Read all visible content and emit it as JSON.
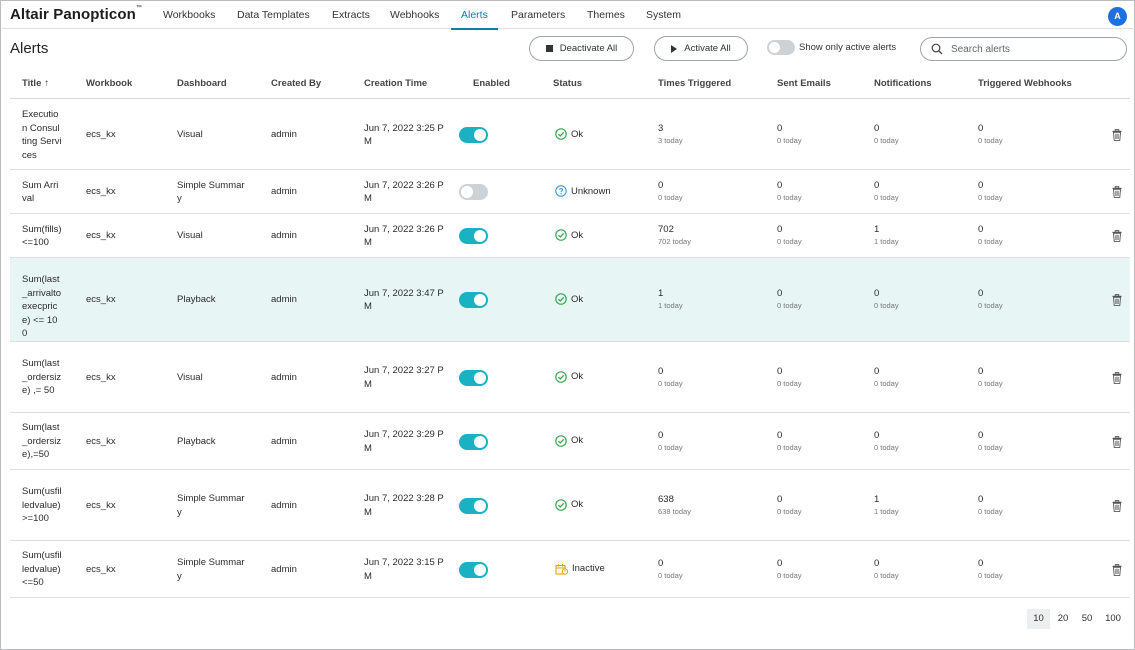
{
  "brand": "Altair Panopticon",
  "brand_mark": "™",
  "nav": [
    {
      "label": "Workbooks",
      "active": false
    },
    {
      "label": "Data Templates",
      "active": false
    },
    {
      "label": "Extracts",
      "active": false
    },
    {
      "label": "Webhooks",
      "active": false
    },
    {
      "label": "Alerts",
      "active": true
    },
    {
      "label": "Parameters",
      "active": false
    },
    {
      "label": "Themes",
      "active": false
    },
    {
      "label": "System",
      "active": false
    }
  ],
  "user_initial": "A",
  "page_title": "Alerts",
  "buttons": {
    "deactivate_all": "Deactivate All",
    "activate_all": "Activate All"
  },
  "active_filter": {
    "label": "Show only active alerts",
    "on": false
  },
  "search": {
    "placeholder": "Search alerts",
    "value": ""
  },
  "columns": {
    "title": "Title",
    "sort_indicator": "↑",
    "workbook": "Workbook",
    "dashboard": "Dashboard",
    "created_by": "Created By",
    "creation_time": "Creation Time",
    "enabled": "Enabled",
    "status": "Status",
    "times_triggered": "Times Triggered",
    "sent_emails": "Sent Emails",
    "notifications": "Notifications",
    "triggered_webhooks": "Triggered Webhooks"
  },
  "rows": [
    {
      "title": "Execution Consulting Services",
      "workbook": "ecs_kx",
      "dashboard": "Visual",
      "created_by": "admin",
      "creation_time": "Jun 7, 2022 3:25 PM",
      "enabled": true,
      "status": "Ok",
      "status_kind": "ok",
      "times_triggered": "3",
      "times_triggered_today": "3 today",
      "sent_emails": "0",
      "sent_emails_today": "0 today",
      "notifications": "0",
      "notifications_today": "0 today",
      "webhooks": "0",
      "webhooks_today": "0 today",
      "highlight": false
    },
    {
      "title": "Sum Arrival",
      "workbook": "ecs_kx",
      "dashboard": "Simple Summary",
      "created_by": "admin",
      "creation_time": "Jun 7, 2022 3:26 PM",
      "enabled": false,
      "status": "Unknown",
      "status_kind": "unknown",
      "times_triggered": "0",
      "times_triggered_today": "0 today",
      "sent_emails": "0",
      "sent_emails_today": "0 today",
      "notifications": "0",
      "notifications_today": "0 today",
      "webhooks": "0",
      "webhooks_today": "0 today",
      "highlight": false
    },
    {
      "title": "Sum(fills)<=100",
      "workbook": "ecs_kx",
      "dashboard": "Visual",
      "created_by": "admin",
      "creation_time": "Jun 7, 2022 3:26 PM",
      "enabled": true,
      "status": "Ok",
      "status_kind": "ok",
      "times_triggered": "702",
      "times_triggered_today": "702 today",
      "sent_emails": "0",
      "sent_emails_today": "0 today",
      "notifications": "1",
      "notifications_today": "1 today",
      "webhooks": "0",
      "webhooks_today": "0 today",
      "highlight": false
    },
    {
      "title": "Sum(last_arrivaltoexecprice) <= 100",
      "workbook": "ecs_kx",
      "dashboard": "Playback",
      "created_by": "admin",
      "creation_time": "Jun 7, 2022 3:47 PM",
      "enabled": true,
      "status": "Ok",
      "status_kind": "ok",
      "times_triggered": "1",
      "times_triggered_today": "1 today",
      "sent_emails": "0",
      "sent_emails_today": "0 today",
      "notifications": "0",
      "notifications_today": "0 today",
      "webhooks": "0",
      "webhooks_today": "0 today",
      "highlight": true
    },
    {
      "title": "Sum(last_ordersize) ,= 50",
      "workbook": "ecs_kx",
      "dashboard": "Visual",
      "created_by": "admin",
      "creation_time": "Jun 7, 2022 3:27 PM",
      "enabled": true,
      "status": "Ok",
      "status_kind": "ok",
      "times_triggered": "0",
      "times_triggered_today": "0 today",
      "sent_emails": "0",
      "sent_emails_today": "0 today",
      "notifications": "0",
      "notifications_today": "0 today",
      "webhooks": "0",
      "webhooks_today": "0 today",
      "highlight": false
    },
    {
      "title": "Sum(last_ordersize),=50",
      "workbook": "ecs_kx",
      "dashboard": "Playback",
      "created_by": "admin",
      "creation_time": "Jun 7, 2022 3:29 PM",
      "enabled": true,
      "status": "Ok",
      "status_kind": "ok",
      "times_triggered": "0",
      "times_triggered_today": "0 today",
      "sent_emails": "0",
      "sent_emails_today": "0 today",
      "notifications": "0",
      "notifications_today": "0 today",
      "webhooks": "0",
      "webhooks_today": "0 today",
      "highlight": false
    },
    {
      "title": "Sum(usfilledvalue) >=100",
      "workbook": "ecs_kx",
      "dashboard": "Simple Summary",
      "created_by": "admin",
      "creation_time": "Jun 7, 2022 3:28 PM",
      "enabled": true,
      "status": "Ok",
      "status_kind": "ok",
      "times_triggered": "638",
      "times_triggered_today": "638 today",
      "sent_emails": "0",
      "sent_emails_today": "0 today",
      "notifications": "1",
      "notifications_today": "1 today",
      "webhooks": "0",
      "webhooks_today": "0 today",
      "highlight": false
    },
    {
      "title": "Sum(usfilledvalue)<=50",
      "workbook": "ecs_kx",
      "dashboard": "Simple Summary",
      "created_by": "admin",
      "creation_time": "Jun 7, 2022 3:15 PM",
      "enabled": true,
      "status": "Inactive",
      "status_kind": "inactive",
      "times_triggered": "0",
      "times_triggered_today": "0 today",
      "sent_emails": "0",
      "sent_emails_today": "0 today",
      "notifications": "0",
      "notifications_today": "0 today",
      "webhooks": "0",
      "webhooks_today": "0 today",
      "highlight": false
    }
  ],
  "page_sizes": [
    "10",
    "20",
    "50",
    "100"
  ],
  "page_size_selected": "10",
  "colors": {
    "accent": "#0a7fa8",
    "toggle_on": "#1ab1c3",
    "ok": "#3aa655",
    "unknown": "#3a9ad9",
    "inactive": "#e3a21a",
    "row_highlight": "#e7f5f5"
  }
}
